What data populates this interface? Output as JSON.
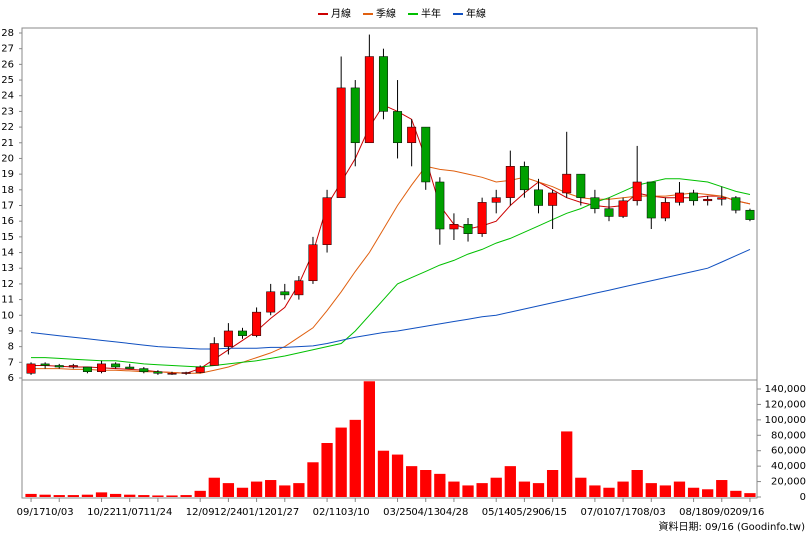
{
  "chart_data": {
    "type": "candlestick",
    "categories": [
      "09/17",
      null,
      "10/03",
      null,
      null,
      "10/22",
      null,
      "11/07",
      null,
      "11/24",
      null,
      null,
      "12/09",
      null,
      "12/24",
      null,
      "01/12",
      null,
      "01/27",
      null,
      null,
      "02/11",
      null,
      "03/10",
      null,
      null,
      "03/25",
      null,
      "04/13",
      null,
      "04/28",
      null,
      null,
      "05/14",
      null,
      "05/29",
      null,
      "06/15",
      null,
      null,
      "07/01",
      null,
      "07/17",
      null,
      "08/03",
      null,
      null,
      "08/18",
      null,
      "09/02",
      null,
      "09/16"
    ],
    "open": [
      6.3,
      6.9,
      6.8,
      6.7,
      6.7,
      6.4,
      6.9,
      6.7,
      6.6,
      6.4,
      6.3,
      6.3,
      6.35,
      6.8,
      8.0,
      9.0,
      8.7,
      10.2,
      11.5,
      11.3,
      12.2,
      14.5,
      17.5,
      24.5,
      21.0,
      26.5,
      23.0,
      21.0,
      22.0,
      18.5,
      15.5,
      15.8,
      15.2,
      17.2,
      17.5,
      19.5,
      18.0,
      17.0,
      17.8,
      19.0,
      17.5,
      16.8,
      16.3,
      17.3,
      18.5,
      16.2,
      17.2,
      17.8,
      17.3,
      17.4,
      17.5,
      16.7
    ],
    "high": [
      7.0,
      7.0,
      6.9,
      6.9,
      6.7,
      7.1,
      7.0,
      6.9,
      6.7,
      6.5,
      6.4,
      6.4,
      6.8,
      8.6,
      9.5,
      9.2,
      10.5,
      12.0,
      12.0,
      12.5,
      15.0,
      18.0,
      26.5,
      25.0,
      27.9,
      27.0,
      25.0,
      22.5,
      22.0,
      18.8,
      16.5,
      16.2,
      17.5,
      18.0,
      20.5,
      19.8,
      18.7,
      18.0,
      21.7,
      19.0,
      18.0,
      17.5,
      17.5,
      20.8,
      18.5,
      17.5,
      18.5,
      18.0,
      17.6,
      18.2,
      17.6,
      16.8
    ],
    "low": [
      6.2,
      6.6,
      6.6,
      6.6,
      6.3,
      6.3,
      6.6,
      6.6,
      6.3,
      6.2,
      6.2,
      6.2,
      6.3,
      6.8,
      7.5,
      8.5,
      8.6,
      10.0,
      11.0,
      11.0,
      12.0,
      14.0,
      17.5,
      19.5,
      21.0,
      22.5,
      20.0,
      19.5,
      18.0,
      14.5,
      14.8,
      14.7,
      15.0,
      16.5,
      17.0,
      17.5,
      16.5,
      15.5,
      17.5,
      17.0,
      16.5,
      16.0,
      16.2,
      17.0,
      15.5,
      16.0,
      17.0,
      17.0,
      17.0,
      17.0,
      16.5,
      16.0
    ],
    "close": [
      6.9,
      6.8,
      6.7,
      6.8,
      6.4,
      6.9,
      6.7,
      6.6,
      6.4,
      6.3,
      6.3,
      6.35,
      6.7,
      8.2,
      9.0,
      8.7,
      10.2,
      11.5,
      11.3,
      12.2,
      14.5,
      17.5,
      24.5,
      21.0,
      26.5,
      23.0,
      21.0,
      22.0,
      18.5,
      15.5,
      15.8,
      15.2,
      17.2,
      17.5,
      19.5,
      18.0,
      17.0,
      17.8,
      19.0,
      17.5,
      16.8,
      16.3,
      17.3,
      18.5,
      16.2,
      17.2,
      17.8,
      17.3,
      17.4,
      17.5,
      16.7,
      16.1
    ],
    "up_color": "#ff0000",
    "down_color": "#00a000",
    "wick_color": "#000000",
    "series": [
      {
        "name": "月線",
        "color": "#cc0000",
        "values": [
          6.8,
          6.8,
          6.75,
          6.7,
          6.7,
          6.65,
          6.6,
          6.55,
          6.5,
          6.4,
          6.35,
          6.3,
          6.6,
          7.2,
          7.8,
          8.4,
          9.0,
          9.8,
          10.5,
          12.0,
          14.0,
          17.0,
          18.5,
          20.0,
          22.0,
          23.4,
          23.0,
          22.5,
          20.0,
          17.0,
          15.8,
          15.5,
          15.7,
          16.0,
          17.0,
          17.8,
          18.5,
          18.0,
          17.5,
          17.2,
          17.0,
          16.9,
          17.0,
          17.8,
          17.6,
          17.5,
          17.5,
          17.5,
          17.6,
          17.6,
          17.3,
          17.1
        ]
      },
      {
        "name": "季線",
        "color": "#e06010",
        "values": [
          6.6,
          6.6,
          6.6,
          6.55,
          6.55,
          6.5,
          6.5,
          6.45,
          6.4,
          6.4,
          6.35,
          6.3,
          6.3,
          6.5,
          6.7,
          7.0,
          7.3,
          7.6,
          8.0,
          8.6,
          9.2,
          10.3,
          11.5,
          12.8,
          14.0,
          15.5,
          17.0,
          18.3,
          19.5,
          19.3,
          19.2,
          19.0,
          18.8,
          18.5,
          18.6,
          18.8,
          18.5,
          18.2,
          17.8,
          17.5,
          17.4,
          17.4,
          17.5,
          17.6,
          17.6,
          17.6,
          17.7,
          17.8,
          17.7,
          17.6,
          17.3,
          17.1
        ]
      },
      {
        "name": "半年",
        "color": "#00c000",
        "values": [
          7.3,
          7.3,
          7.25,
          7.2,
          7.15,
          7.1,
          7.1,
          7.0,
          6.9,
          6.85,
          6.8,
          6.75,
          6.7,
          6.8,
          6.9,
          7.0,
          7.1,
          7.25,
          7.4,
          7.6,
          7.8,
          8.0,
          8.2,
          9.0,
          10.0,
          11.0,
          12.0,
          12.4,
          12.8,
          13.2,
          13.5,
          13.9,
          14.2,
          14.6,
          14.9,
          15.3,
          15.7,
          16.1,
          16.5,
          16.8,
          17.2,
          17.5,
          17.9,
          18.3,
          18.5,
          18.7,
          18.7,
          18.6,
          18.5,
          18.2,
          17.9,
          17.7
        ]
      },
      {
        "name": "年線",
        "color": "#1050c0",
        "values": [
          8.9,
          8.8,
          8.7,
          8.6,
          8.5,
          8.4,
          8.3,
          8.2,
          8.1,
          8.0,
          7.95,
          7.9,
          7.85,
          7.85,
          7.9,
          7.9,
          7.9,
          7.95,
          7.95,
          8.0,
          8.05,
          8.2,
          8.4,
          8.6,
          8.75,
          8.9,
          9.0,
          9.15,
          9.3,
          9.45,
          9.6,
          9.75,
          9.9,
          10.0,
          10.2,
          10.4,
          10.6,
          10.8,
          11.0,
          11.2,
          11.4,
          11.6,
          11.8,
          12.0,
          12.2,
          12.4,
          12.6,
          12.8,
          13.0,
          13.4,
          13.8,
          14.2
        ]
      }
    ],
    "ylim": [
      6,
      28
    ],
    "yticks": [
      6,
      7,
      8,
      9,
      10,
      11,
      12,
      13,
      14,
      15,
      16,
      17,
      18,
      19,
      20,
      21,
      22,
      23,
      24,
      25,
      26,
      27,
      28
    ],
    "volume": {
      "color": "#ff0000",
      "values": [
        4000,
        3000,
        2500,
        2500,
        3000,
        6000,
        4000,
        3000,
        2500,
        2000,
        2000,
        2500,
        8000,
        25000,
        18000,
        12000,
        20000,
        22000,
        15000,
        18000,
        45000,
        70000,
        90000,
        100000,
        150000,
        60000,
        55000,
        40000,
        35000,
        30000,
        20000,
        15000,
        18000,
        25000,
        40000,
        20000,
        18000,
        35000,
        85000,
        25000,
        15000,
        12000,
        20000,
        35000,
        18000,
        15000,
        20000,
        12000,
        10000,
        22000,
        8000,
        5000
      ],
      "ylim": [
        0,
        150000
      ],
      "yticks": [
        0,
        {
          "value": 20000,
          "label": "20,000"
        },
        {
          "value": 40000,
          "label": "40,000"
        },
        {
          "value": 60000,
          "label": "60,000"
        },
        {
          "value": 80000,
          "label": "80,000"
        },
        {
          "value": 100000,
          "label": "100,000"
        },
        {
          "value": 120000,
          "label": "120,000"
        },
        {
          "value": 140000,
          "label": "140,000"
        }
      ]
    },
    "legend": "top",
    "source_note": "資料日期: 09/16 (Goodinfo.tw)"
  }
}
